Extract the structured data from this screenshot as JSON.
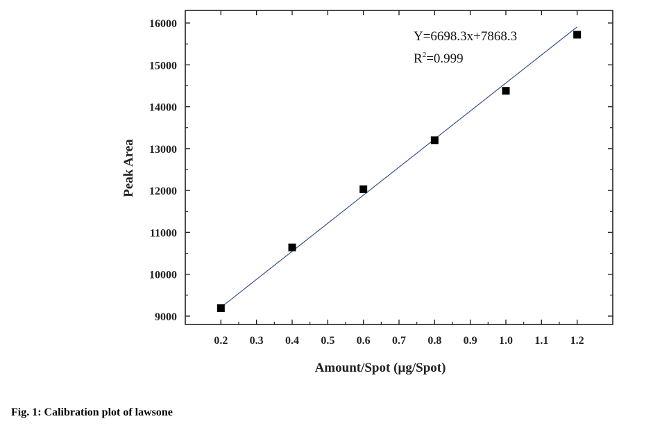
{
  "caption": "Fig. 1: Calibration plot of lawsone",
  "chart_data": {
    "type": "scatter",
    "title": "",
    "xlabel": "Amount/Spot (µg/Spot)",
    "ylabel": "Peak Area",
    "xlim": [
      0.1,
      1.3
    ],
    "ylim": [
      8800,
      16300
    ],
    "xticks": [
      0.2,
      0.3,
      0.4,
      0.5,
      0.6,
      0.7,
      0.8,
      0.9,
      1.0,
      1.1,
      1.2
    ],
    "xtick_labels": [
      "0.2",
      "0.3",
      "0.4",
      "0.5",
      "0.6",
      "0.7",
      "0.8",
      "0.9",
      "1.0",
      "1.1",
      "1.2"
    ],
    "yticks": [
      9000,
      10000,
      11000,
      12000,
      13000,
      14000,
      15000,
      16000
    ],
    "ytick_labels": [
      "9000",
      "10000",
      "11000",
      "12000",
      "13000",
      "14000",
      "15000",
      "16000"
    ],
    "grid": false,
    "series": [
      {
        "type": "scatter",
        "marker": "square",
        "color": "#000000",
        "x": [
          0.2,
          0.4,
          0.6,
          0.8,
          1.0,
          1.2
        ],
        "y": [
          9190,
          10640,
          12030,
          13200,
          14380,
          15720
        ]
      },
      {
        "type": "line",
        "color": "#3a4f8c",
        "slope": 6698.3,
        "intercept": 7868.3,
        "x": [
          0.2,
          1.2
        ],
        "y": [
          9208,
          15906
        ]
      }
    ],
    "annotations": {
      "equation": "Y=6698.3x+7868.3",
      "r2_prefix": "R",
      "r2_sup": "2",
      "r2_value": "=0.999"
    }
  }
}
